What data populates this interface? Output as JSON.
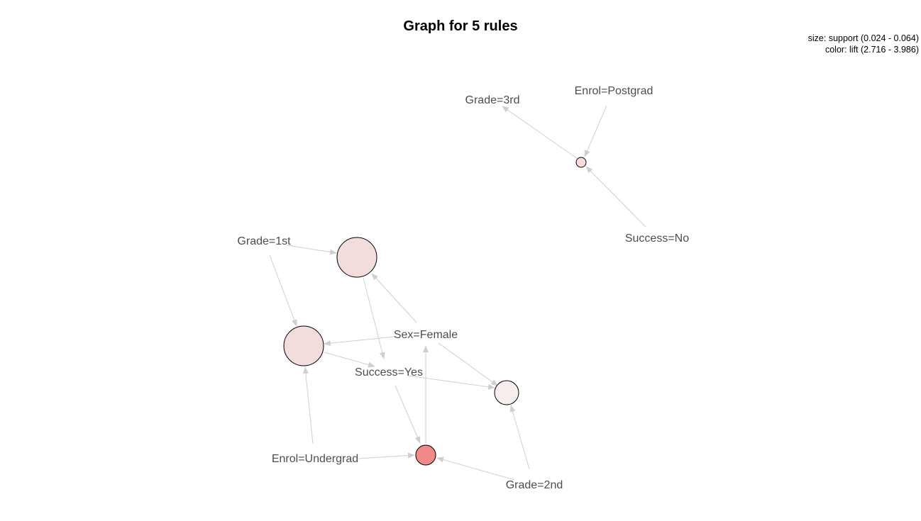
{
  "title": "Graph for 5 rules",
  "legend": {
    "size_line": "size: support (0.024 - 0.064)",
    "color_line": "color: lift (2.716 - 3.986)"
  },
  "colors": {
    "edge": "#cfcfcf",
    "label": "#4d4d4d",
    "rule_fill_scale": [
      "#f7eeee",
      "#f2dcdc",
      "#f08a8a"
    ]
  },
  "items": [
    {
      "id": "grade3",
      "label": "Grade=3rd"
    },
    {
      "id": "enrolpg",
      "label": "Enrol=Postgrad"
    },
    {
      "id": "successno",
      "label": "Success=No"
    },
    {
      "id": "grade1",
      "label": "Grade=1st"
    },
    {
      "id": "sexf",
      "label": "Sex=Female"
    },
    {
      "id": "successyes",
      "label": "Success=Yes"
    },
    {
      "id": "enrolug",
      "label": "Enrol=Undergrad"
    },
    {
      "id": "grade2",
      "label": "Grade=2nd"
    }
  ],
  "rules": [
    {
      "id": "r1",
      "lhs": [
        "enrolpg",
        "successno"
      ],
      "rhs": "grade3",
      "fill": "#f8dada"
    },
    {
      "id": "r2",
      "lhs": [
        "grade1",
        "sexf"
      ],
      "rhs": "successyes",
      "fill": "#f2dcdc"
    },
    {
      "id": "r3",
      "lhs": [
        "grade1",
        "sexf",
        "enrolug"
      ],
      "rhs": "successyes",
      "fill": "#f2dcdc"
    },
    {
      "id": "r4",
      "lhs": [
        "sexf",
        "successyes",
        "grade2"
      ],
      "rhs": null,
      "fill": "#f7eeee"
    },
    {
      "id": "r5",
      "lhs": [
        "successyes",
        "enrolug",
        "grade2"
      ],
      "rhs": "sexf",
      "fill": "#f08a8a"
    }
  ]
}
